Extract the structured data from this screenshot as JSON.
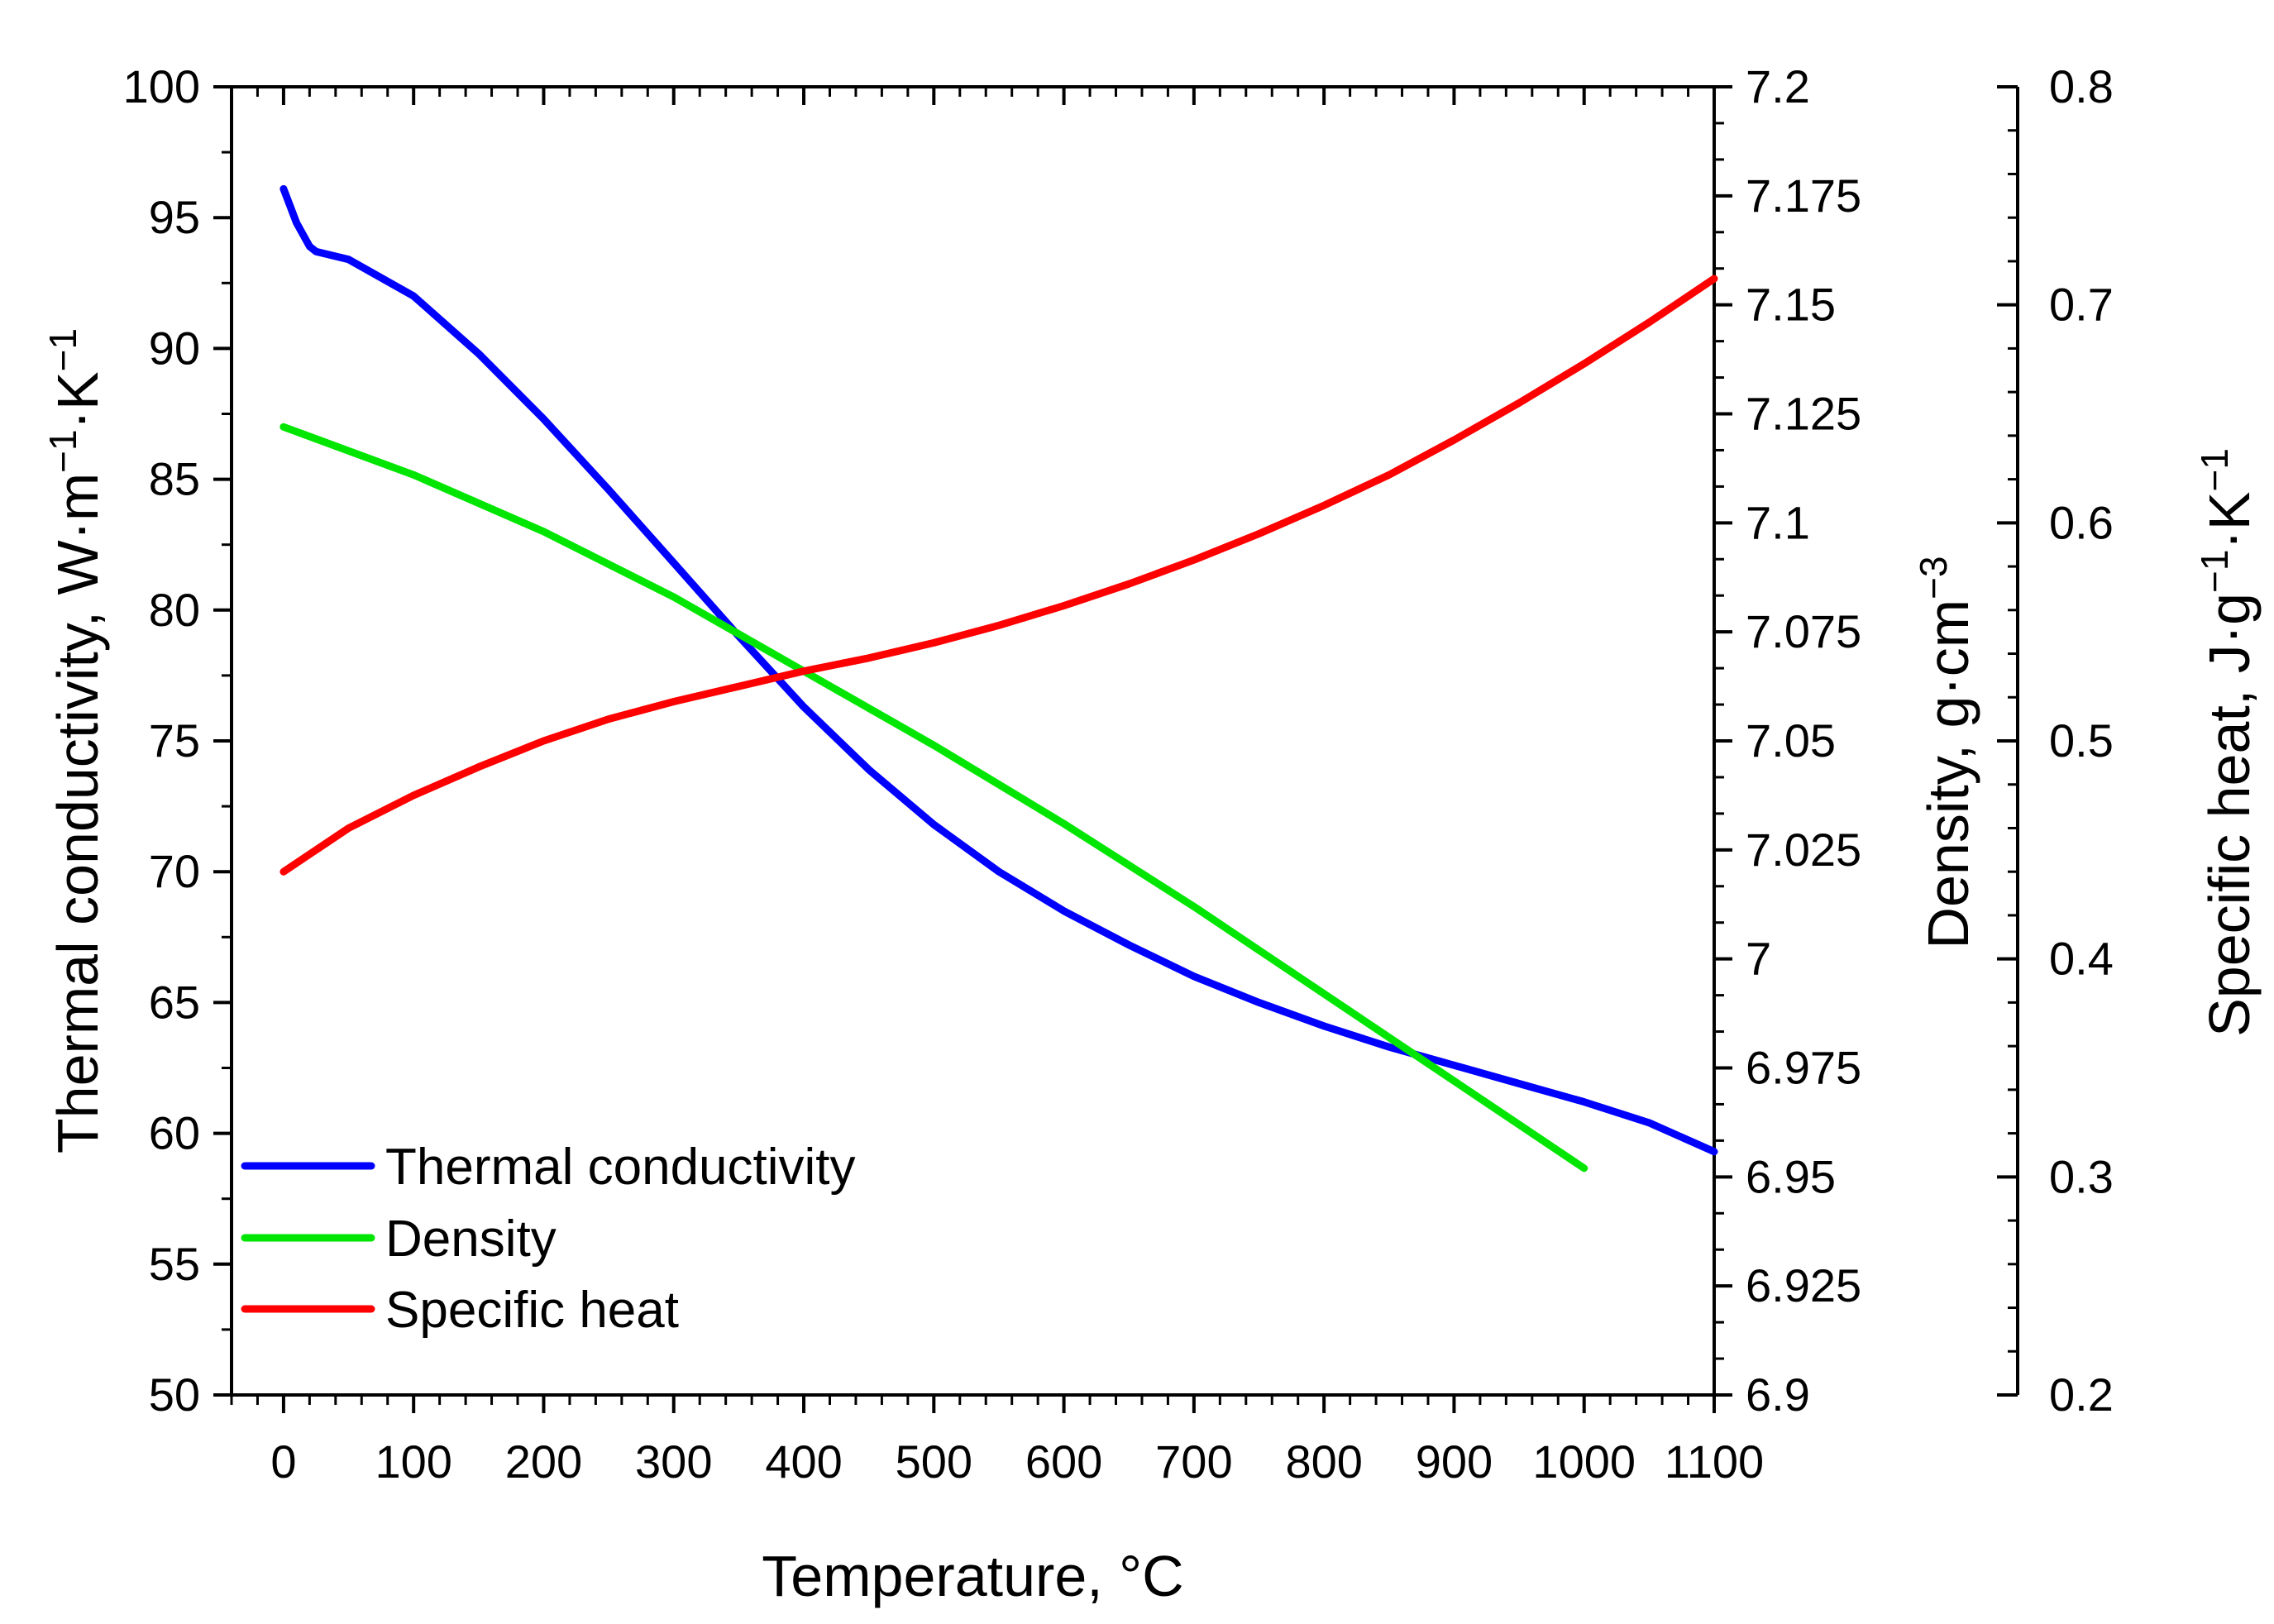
{
  "chart_data": {
    "type": "line",
    "xlabel": "Temperature, °C",
    "xlim": [
      -40,
      1100
    ],
    "xticks": [
      0,
      100,
      200,
      300,
      400,
      500,
      600,
      700,
      800,
      900,
      1000,
      1100
    ],
    "y_axes": [
      {
        "id": "y1",
        "position": "left",
        "label_main": "Thermal conductivity,  W·m",
        "label_sup1": "−1",
        "label_mid": "·K",
        "label_sup2": "−1",
        "ylim": [
          50,
          100
        ],
        "ticks": [
          50,
          55,
          60,
          65,
          70,
          75,
          80,
          85,
          90,
          95,
          100
        ]
      },
      {
        "id": "y2",
        "position": "right",
        "label_main": "Density,  g·cm",
        "label_sup1": "−3",
        "ylim": [
          6.9,
          7.2
        ],
        "ticks": [
          "6.9",
          "6.925",
          "6.95",
          "6.975",
          "7",
          "7.025",
          "7.05",
          "7.075",
          "7.1",
          "7.125",
          "7.15",
          "7.175",
          "7.2"
        ]
      },
      {
        "id": "y3",
        "position": "right-offset",
        "label_main": "Specific heat,  J·g",
        "label_sup1": "−1",
        "label_mid": "·K",
        "label_sup2": "−1",
        "ylim": [
          0.2,
          0.8
        ],
        "ticks": [
          "0.2",
          "0.3",
          "0.4",
          "0.5",
          "0.6",
          "0.7",
          "0.8"
        ]
      }
    ],
    "series": [
      {
        "name": "Thermal conductivity",
        "axis": "y1",
        "color": "#0000ff",
        "x": [
          0,
          10,
          20,
          25,
          50,
          100,
          150,
          200,
          250,
          300,
          350,
          400,
          450,
          500,
          550,
          600,
          650,
          700,
          750,
          800,
          850,
          900,
          950,
          1000,
          1050,
          1100
        ],
        "y": [
          96.1,
          94.8,
          93.9,
          93.7,
          93.4,
          92.0,
          89.8,
          87.3,
          84.6,
          81.8,
          79.0,
          76.3,
          73.9,
          71.8,
          70.0,
          68.5,
          67.2,
          66.0,
          65.0,
          64.1,
          63.3,
          62.6,
          61.9,
          61.2,
          60.4,
          59.3
        ]
      },
      {
        "name": "Density",
        "axis": "y2",
        "color": "#00e600",
        "x": [
          0,
          100,
          200,
          300,
          400,
          500,
          600,
          700,
          800,
          900,
          1000
        ],
        "y": [
          7.122,
          7.111,
          7.098,
          7.083,
          7.066,
          7.049,
          7.031,
          7.012,
          6.992,
          6.972,
          6.952
        ]
      },
      {
        "name": "Specific heat",
        "axis": "y3",
        "color": "#ff0000",
        "x": [
          0,
          50,
          100,
          150,
          200,
          250,
          300,
          350,
          400,
          450,
          500,
          550,
          600,
          650,
          700,
          750,
          800,
          850,
          900,
          950,
          1000,
          1050,
          1100
        ],
        "y": [
          0.44,
          0.46,
          0.475,
          0.488,
          0.5,
          0.51,
          0.518,
          0.525,
          0.532,
          0.538,
          0.545,
          0.553,
          0.562,
          0.572,
          0.583,
          0.595,
          0.608,
          0.622,
          0.638,
          0.655,
          0.673,
          0.692,
          0.712
        ]
      }
    ],
    "legend": {
      "placement": "bottom-left",
      "entries": [
        "Thermal conductivity",
        "Density",
        "Specific heat"
      ]
    },
    "grid": false
  }
}
